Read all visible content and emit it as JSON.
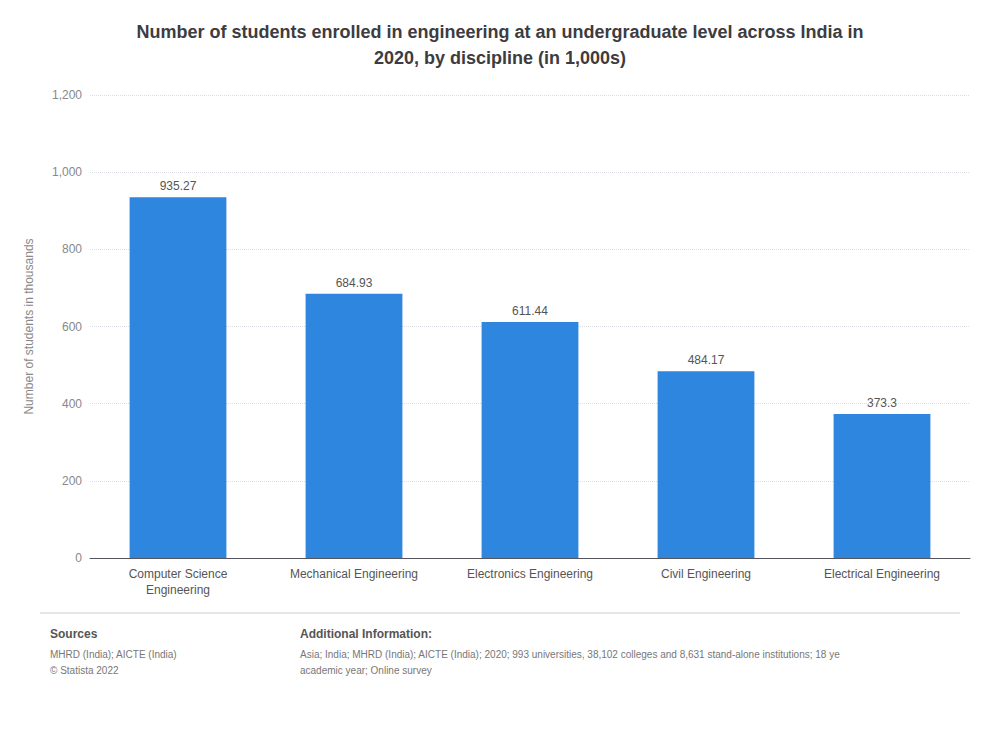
{
  "chart_data": {
    "type": "bar",
    "title": "Number of students enrolled in engineering at an undergraduate level across India in\n2020, by discipline (in 1,000s)",
    "ylabel": "Number of students in thousands",
    "categories": [
      "Computer Science\nEngineering",
      "Mechanical Engineering",
      "Electronics Engineering",
      "Civil Engineering",
      "Electrical Engineering"
    ],
    "values": [
      935.27,
      684.93,
      611.44,
      484.17,
      373.3
    ],
    "color": "#2e86de",
    "ylim": [
      0,
      1200
    ],
    "yticks": [
      0,
      200,
      400,
      600,
      800,
      {
        "value": 1000,
        "label": "1,000"
      },
      {
        "value": 1200,
        "label": "1,200"
      }
    ],
    "grid": true,
    "data_labels": true,
    "annotations": [
      "Sources",
      "MHRD (India); AICTE (India)\n© Statista 2022",
      "Additional Information:",
      "Asia; India; MHRD (India); AICTE (India); 2020; 993 universities, 38,102 colleges and 8,631 stand-alone institutions; 18 ye\nacademic year; Online survey"
    ]
  }
}
